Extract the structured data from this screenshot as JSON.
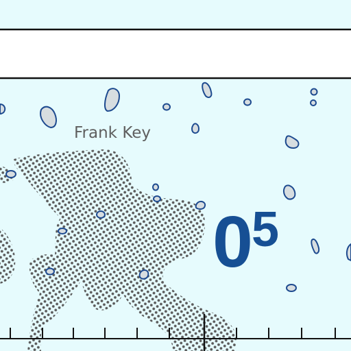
{
  "map": {
    "place_name": "Frank Key",
    "depth_sounding": {
      "major": "0",
      "minor": "5"
    },
    "colors": {
      "water": "#e6fbfd",
      "header_band": "#ffffff",
      "border_line": "#111111",
      "island_fill": "#d7dde0",
      "island_stroke": "#1d4a8f",
      "shoal_dot": "#5a5a5a",
      "sounding_text": "#164f94",
      "label_text": "#5f5f5f"
    },
    "features": [
      "islet",
      "shoal-area",
      "scale-bar"
    ]
  }
}
